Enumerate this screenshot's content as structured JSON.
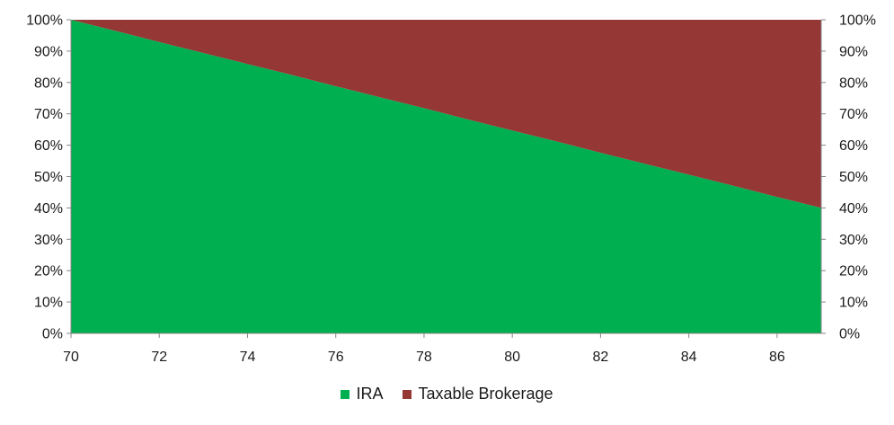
{
  "chart_data": {
    "type": "area",
    "stacked": true,
    "percent": true,
    "x": [
      70,
      71,
      72,
      73,
      74,
      75,
      76,
      77,
      78,
      79,
      80,
      81,
      82,
      83,
      84,
      85,
      86,
      87
    ],
    "series": [
      {
        "name": "IRA",
        "color": "#00b050",
        "values": [
          100,
          96.5,
          92.9,
          89.4,
          85.9,
          82.4,
          78.8,
          75.3,
          71.8,
          68.2,
          64.7,
          61.2,
          57.6,
          54.1,
          50.6,
          47.1,
          43.5,
          40
        ]
      },
      {
        "name": "Taxable Brokerage",
        "color": "#953735",
        "values": [
          0,
          3.5,
          7.1,
          10.6,
          14.1,
          17.6,
          21.2,
          24.7,
          28.2,
          31.8,
          35.3,
          38.8,
          42.4,
          45.9,
          49.4,
          52.9,
          56.5,
          60
        ]
      }
    ],
    "x_ticks": [
      "70",
      "72",
      "74",
      "76",
      "78",
      "80",
      "82",
      "84",
      "86"
    ],
    "y_ticks": [
      "0%",
      "10%",
      "20%",
      "30%",
      "40%",
      "50%",
      "60%",
      "70%",
      "80%",
      "90%",
      "100%"
    ],
    "y_ticks_right": [
      "0%",
      "10%",
      "20%",
      "30%",
      "40%",
      "50%",
      "60%",
      "70%",
      "80%",
      "90%",
      "100%"
    ],
    "xlim": [
      70,
      87
    ],
    "ylim": [
      0,
      100
    ],
    "grid": false,
    "legend_position": "bottom",
    "title": "",
    "xlabel": "",
    "ylabel": ""
  }
}
